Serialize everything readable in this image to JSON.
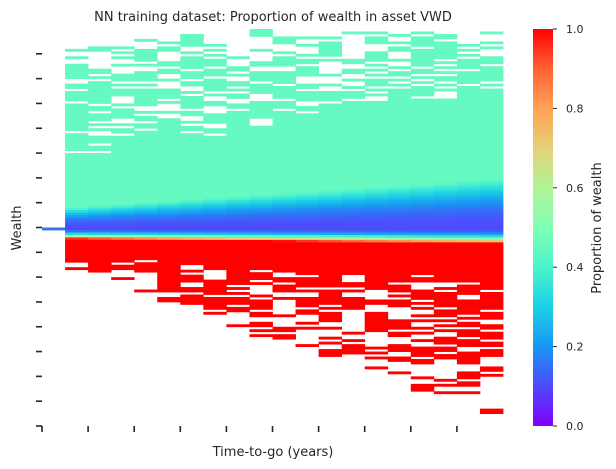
{
  "chart_data": {
    "type": "heatmap",
    "title": "NN training dataset: Proportion of wealth in asset VWD",
    "xlabel": "Time-to-go (years)",
    "ylabel": "Wealth",
    "x_tick_labels": [
      "",
      "",
      "",
      "",
      "",
      "",
      "",
      "",
      "",
      ""
    ],
    "y_tick_labels": [
      "",
      "",
      "",
      "",
      "",
      "",
      "",
      "",
      "",
      "",
      "",
      "",
      "",
      "",
      "",
      ""
    ],
    "colorbar": {
      "label": "Proportion of wealth",
      "colormap": "rainbow",
      "range": [
        0.0,
        1.0
      ],
      "ticks": [
        "0.0",
        "0.2",
        "0.4",
        "0.6",
        "0.8",
        "1.0"
      ]
    },
    "columns": 20,
    "rows": 160,
    "upper_region_value": 0.45,
    "lower_region_value": 1.0,
    "transition_band_min_value": 0.1,
    "missing_cells": "white (no training data)"
  }
}
